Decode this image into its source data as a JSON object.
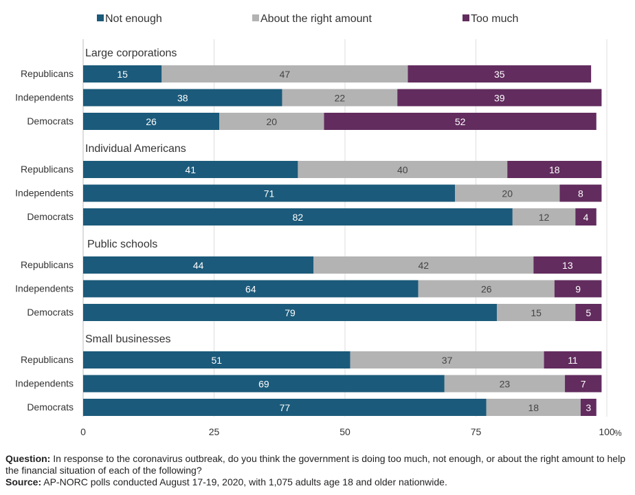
{
  "chart_data": {
    "type": "bar",
    "orientation": "horizontal",
    "stacked": true,
    "legend_position": "top",
    "grid": true,
    "xlim": [
      0,
      100
    ],
    "x_ticks": [
      "0",
      "25",
      "50",
      "75",
      "100"
    ],
    "x_unit": "%",
    "colors": {
      "Not enough": "#1b5a7a",
      "About the right amount": "#b3b3b3",
      "Too much": "#622c5e"
    },
    "series_names": [
      "Not enough",
      "About the right amount",
      "Too much"
    ],
    "groups": [
      {
        "title": "Large corporations",
        "rows": [
          {
            "label": "Republicans",
            "values": [
              15,
              47,
              35
            ]
          },
          {
            "label": "Independents",
            "values": [
              38,
              22,
              39
            ]
          },
          {
            "label": "Democrats",
            "values": [
              26,
              20,
              52
            ]
          }
        ]
      },
      {
        "title": "Individual Americans",
        "rows": [
          {
            "label": "Republicans",
            "values": [
              41,
              40,
              18
            ]
          },
          {
            "label": "Independents",
            "values": [
              71,
              20,
              8
            ]
          },
          {
            "label": "Democrats",
            "values": [
              82,
              12,
              4
            ]
          }
        ]
      },
      {
        "title": "Public schools",
        "rows": [
          {
            "label": "Republicans",
            "values": [
              44,
              42,
              13
            ]
          },
          {
            "label": "Independents",
            "values": [
              64,
              26,
              9
            ]
          },
          {
            "label": "Democrats",
            "values": [
              79,
              15,
              5
            ]
          }
        ]
      },
      {
        "title": "Small businesses",
        "rows": [
          {
            "label": "Republicans",
            "values": [
              51,
              37,
              11
            ]
          },
          {
            "label": "Independents",
            "values": [
              69,
              23,
              7
            ]
          },
          {
            "label": "Democrats",
            "values": [
              77,
              18,
              3
            ]
          }
        ]
      }
    ]
  },
  "footnote": {
    "question_label": "Question:",
    "question_text": " In response to the coronavirus outbreak, do you think the government is doing too much, not enough, or about the right amount to help the financial situation of each of the following?",
    "source_label": "Source:",
    "source_text": " AP-NORC polls conducted August 17-19, 2020, with 1,075 adults age 18 and older nationwide."
  }
}
